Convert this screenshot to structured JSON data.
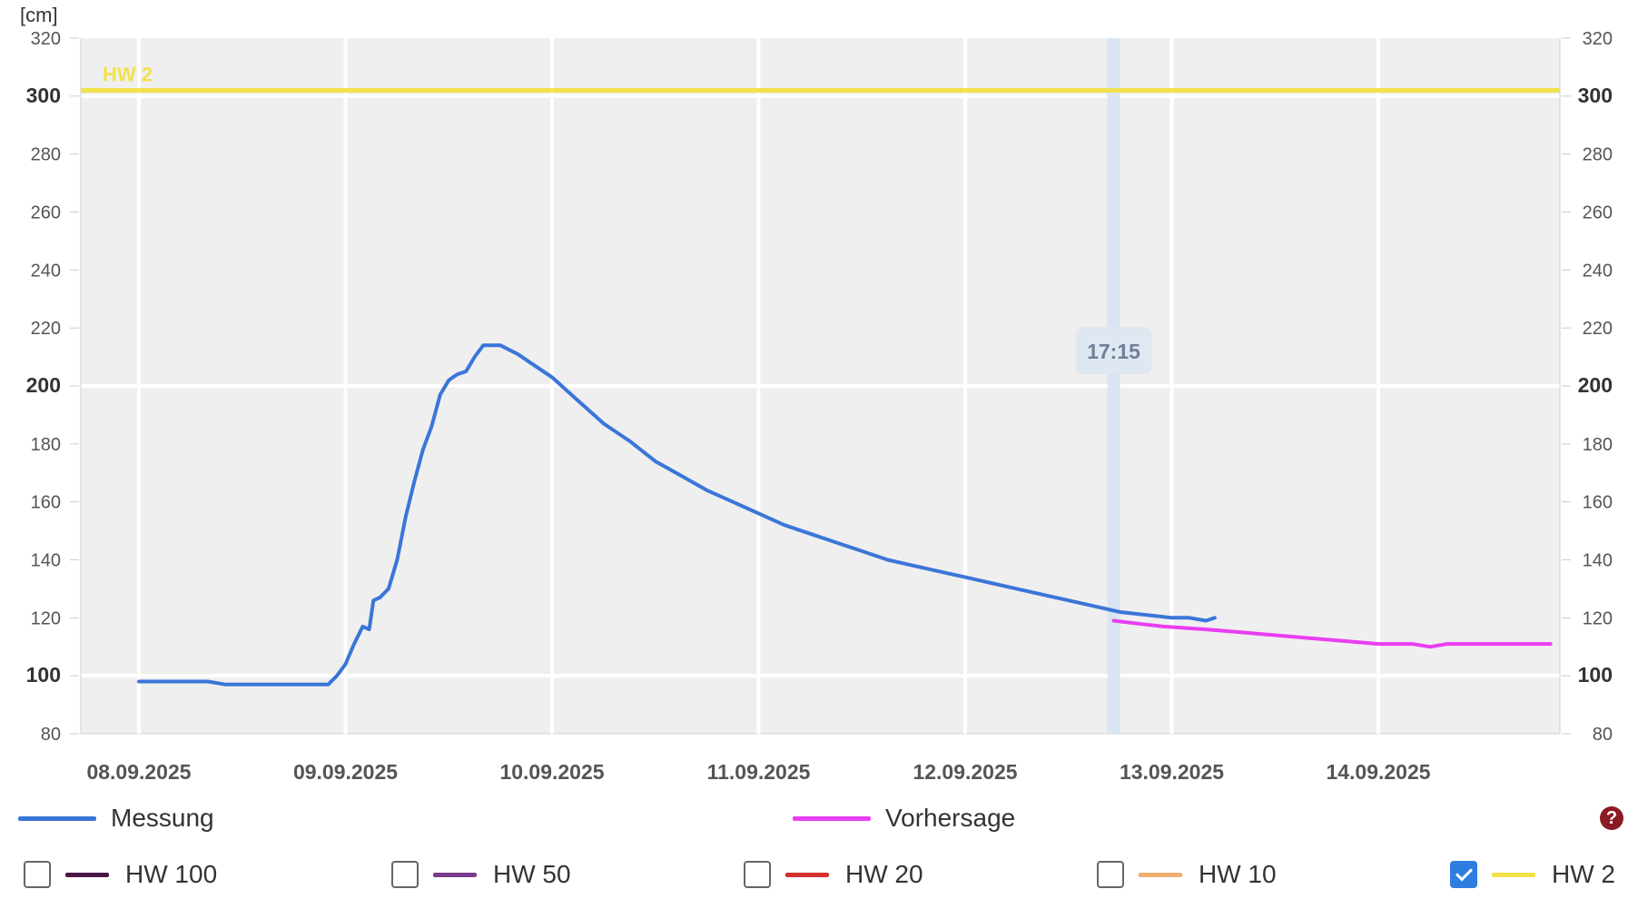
{
  "chart_data": {
    "type": "line",
    "unit_label": "[cm]",
    "y_ticks": [
      80,
      100,
      120,
      140,
      160,
      180,
      200,
      220,
      240,
      260,
      280,
      300,
      320
    ],
    "y_major_ticks": [
      100,
      200,
      300
    ],
    "ylim": [
      80,
      320
    ],
    "x_range_days": [
      -0.28,
      6.9
    ],
    "x_tick_labels": [
      "08.09.2025",
      "09.09.2025",
      "10.09.2025",
      "11.09.2025",
      "12.09.2025",
      "13.09.2025",
      "14.09.2025"
    ],
    "current_time_label": "17:15",
    "current_time": "12.09.2025 17:15",
    "thresholds": [
      {
        "name": "HW 2",
        "value": 302,
        "color": "#f2e14c",
        "shown": true
      }
    ],
    "series": [
      {
        "name": "Messung",
        "color": "#3a76d8",
        "points": [
          [
            "08.09.2025 00:00",
            98
          ],
          [
            "08.09.2025 02:00",
            98
          ],
          [
            "08.09.2025 04:00",
            98
          ],
          [
            "08.09.2025 06:00",
            98
          ],
          [
            "08.09.2025 08:00",
            98
          ],
          [
            "08.09.2025 10:00",
            97
          ],
          [
            "08.09.2025 12:00",
            97
          ],
          [
            "08.09.2025 16:00",
            97
          ],
          [
            "08.09.2025 20:00",
            97
          ],
          [
            "08.09.2025 22:00",
            97
          ],
          [
            "08.09.2025 23:00",
            100
          ],
          [
            "09.09.2025 00:00",
            104
          ],
          [
            "09.09.2025 01:00",
            111
          ],
          [
            "09.09.2025 02:00",
            117
          ],
          [
            "09.09.2025 02:45",
            116
          ],
          [
            "09.09.2025 03:15",
            126
          ],
          [
            "09.09.2025 04:00",
            127
          ],
          [
            "09.09.2025 05:00",
            130
          ],
          [
            "09.09.2025 06:00",
            140
          ],
          [
            "09.09.2025 07:00",
            155
          ],
          [
            "09.09.2025 08:00",
            167
          ],
          [
            "09.09.2025 09:00",
            178
          ],
          [
            "09.09.2025 10:00",
            186
          ],
          [
            "09.09.2025 11:00",
            197
          ],
          [
            "09.09.2025 12:00",
            202
          ],
          [
            "09.09.2025 13:00",
            204
          ],
          [
            "09.09.2025 14:00",
            205
          ],
          [
            "09.09.2025 15:00",
            210
          ],
          [
            "09.09.2025 16:00",
            214
          ],
          [
            "09.09.2025 17:00",
            214
          ],
          [
            "09.09.2025 18:00",
            214
          ],
          [
            "09.09.2025 20:00",
            211
          ],
          [
            "09.09.2025 22:00",
            207
          ],
          [
            "10.09.2025 00:00",
            203
          ],
          [
            "10.09.2025 03:00",
            195
          ],
          [
            "10.09.2025 06:00",
            187
          ],
          [
            "10.09.2025 09:00",
            181
          ],
          [
            "10.09.2025 12:00",
            174
          ],
          [
            "10.09.2025 15:00",
            169
          ],
          [
            "10.09.2025 18:00",
            164
          ],
          [
            "10.09.2025 21:00",
            160
          ],
          [
            "11.09.2025 00:00",
            156
          ],
          [
            "11.09.2025 03:00",
            152
          ],
          [
            "11.09.2025 06:00",
            149
          ],
          [
            "11.09.2025 09:00",
            146
          ],
          [
            "11.09.2025 12:00",
            143
          ],
          [
            "11.09.2025 15:00",
            140
          ],
          [
            "11.09.2025 18:00",
            138
          ],
          [
            "11.09.2025 21:00",
            136
          ],
          [
            "12.09.2025 00:00",
            134
          ],
          [
            "12.09.2025 03:00",
            132
          ],
          [
            "12.09.2025 06:00",
            130
          ],
          [
            "12.09.2025 09:00",
            128
          ],
          [
            "12.09.2025 12:00",
            126
          ],
          [
            "12.09.2025 15:00",
            124
          ],
          [
            "12.09.2025 18:00",
            122
          ],
          [
            "12.09.2025 21:00",
            121
          ],
          [
            "13.09.2025 00:00",
            120
          ],
          [
            "13.09.2025 02:00",
            120
          ],
          [
            "13.09.2025 04:00",
            119
          ],
          [
            "13.09.2025 05:00",
            120
          ]
        ]
      },
      {
        "name": "Vorhersage",
        "color": "#e83ef0",
        "points": [
          [
            "12.09.2025 17:15",
            119
          ],
          [
            "12.09.2025 20:00",
            118
          ],
          [
            "12.09.2025 23:00",
            117
          ],
          [
            "13.09.2025 04:00",
            116
          ],
          [
            "13.09.2025 08:00",
            115
          ],
          [
            "13.09.2025 12:00",
            114
          ],
          [
            "13.09.2025 16:00",
            113
          ],
          [
            "13.09.2025 20:00",
            112
          ],
          [
            "14.09.2025 00:00",
            111
          ],
          [
            "14.09.2025 04:00",
            111
          ],
          [
            "14.09.2025 06:00",
            110
          ],
          [
            "14.09.2025 08:00",
            111
          ],
          [
            "14.09.2025 14:00",
            111
          ],
          [
            "14.09.2025 20:00",
            111
          ]
        ]
      }
    ],
    "legend": [
      {
        "label": "Messung",
        "color": "#3a76d8"
      },
      {
        "label": "Vorhersage",
        "color": "#e83ef0"
      }
    ],
    "threshold_toggles": [
      {
        "label": "HW 100",
        "color": "#4a1748",
        "checked": false
      },
      {
        "label": "HW 50",
        "color": "#7b3a8c",
        "checked": false
      },
      {
        "label": "HW 20",
        "color": "#d32f2f",
        "checked": false
      },
      {
        "label": "HW 10",
        "color": "#f0ad72",
        "checked": false
      },
      {
        "label": "HW 2",
        "color": "#f2e14c",
        "checked": true
      }
    ],
    "grid": true,
    "plot_bg": "#efefef"
  },
  "help_icon": "question-icon",
  "help_glyph": "?"
}
